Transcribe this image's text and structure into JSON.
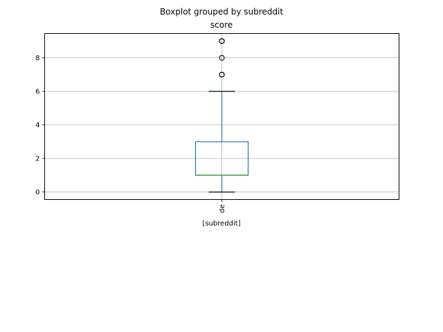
{
  "chart_data": {
    "type": "box",
    "suptitle": "Boxplot grouped by subreddit",
    "title": "score",
    "xlabel": "[subreddit]",
    "ylabel": "",
    "ylim": [
      -0.45,
      9.45
    ],
    "yticks": [
      0,
      2,
      4,
      6,
      8
    ],
    "grid": true,
    "categories": [
      "de"
    ],
    "boxes": [
      {
        "category": "de",
        "whisker_low": 0,
        "q1": 1,
        "median": 1,
        "q3": 3,
        "whisker_high": 6,
        "outliers": [
          7,
          7,
          8,
          9,
          9
        ]
      }
    ],
    "colors": {
      "box": "#1f77b4",
      "median": "#2ca02c",
      "whisker_cap": "#000000",
      "outlier": "#000000",
      "grid": "#b0b0b0"
    }
  }
}
